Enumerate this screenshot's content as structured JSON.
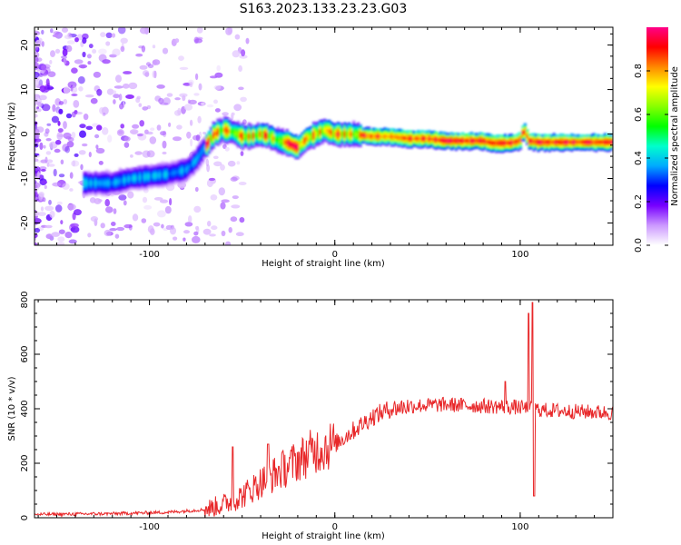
{
  "title": "S163.2023.133.23.23.G03",
  "chart_data": [
    {
      "type": "heatmap",
      "xlabel": "Height of straight line (km)",
      "ylabel": "Frequency (Hz)",
      "xlim": [
        -162,
        150
      ],
      "ylim": [
        -25,
        24
      ],
      "xticks": [
        -100,
        0,
        100
      ],
      "yticks": [
        -20,
        -10,
        0,
        10,
        20
      ],
      "colorbar": {
        "label": "Normalized spectral amplitude",
        "range": [
          0,
          1
        ],
        "ticks": [
          "0.0",
          "0.2",
          "0.4",
          "0.6",
          "0.8"
        ],
        "colormap": [
          "#ffffff",
          "#cc99ff",
          "#7700ff",
          "#0000ff",
          "#00aaff",
          "#00ffcc",
          "#00ff00",
          "#88ff00",
          "#ffff00",
          "#ff8800",
          "#ff0000",
          "#ff0088"
        ]
      },
      "ridge": {
        "x": [
          -130,
          -120,
          -110,
          -100,
          -90,
          -80,
          -75,
          -70,
          -65,
          -60,
          -55,
          -50,
          -45,
          -40,
          -35,
          -30,
          -25,
          -20,
          -15,
          -10,
          -5,
          0,
          10,
          20,
          30,
          40,
          50,
          60,
          70,
          80,
          85,
          90,
          95,
          100,
          102,
          105,
          110,
          120,
          130,
          140,
          150
        ],
        "y": [
          -11,
          -11,
          -10,
          -9.5,
          -9,
          -8,
          -6,
          -3,
          0,
          1,
          0.5,
          -0.5,
          -0.5,
          0,
          -0.5,
          -1.5,
          -2,
          -3,
          -1,
          0,
          1,
          0,
          0,
          -0.5,
          -0.5,
          -1,
          -1,
          -1.5,
          -1.5,
          -1.5,
          -2,
          -2,
          -2,
          -1.5,
          1,
          -1.5,
          -1.8,
          -1.8,
          -1.8,
          -1.8,
          -1.8
        ]
      }
    },
    {
      "type": "line",
      "xlabel": "Height of straight line (km)",
      "ylabel": "SNR (10 * v/v)",
      "xlim": [
        -162,
        150
      ],
      "ylim": [
        0,
        800
      ],
      "xticks": [
        -100,
        0,
        100
      ],
      "yticks": [
        0,
        200,
        400,
        600,
        800
      ],
      "series": [
        {
          "color": "#e8282a",
          "trend": {
            "x": [
              -162,
              -120,
              -90,
              -70,
              -60,
              -50,
              -40,
              -30,
              -20,
              -10,
              0,
              10,
              20,
              30,
              40,
              60,
              80,
              100,
              105,
              108,
              112,
              130,
              150
            ],
            "y": [
              12,
              15,
              20,
              30,
              50,
              80,
              130,
              170,
              210,
              250,
              270,
              320,
              370,
              400,
              410,
              415,
              410,
              405,
              400,
              400,
              395,
              390,
              385
            ]
          },
          "features": [
            {
              "x": -55,
              "y": 260
            },
            {
              "x": -36,
              "y": 270
            },
            {
              "x": 92,
              "y": 500
            },
            {
              "x": 104.5,
              "y": 750
            },
            {
              "x": 106.5,
              "y": 790
            },
            {
              "x": 107.5,
              "y": 80
            }
          ]
        }
      ]
    }
  ],
  "colors": {
    "line": "#e8282a",
    "axis": "#000000"
  }
}
